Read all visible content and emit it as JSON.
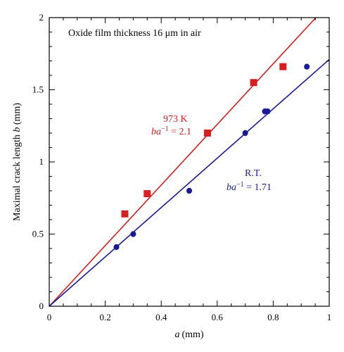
{
  "chart_data": {
    "type": "scatter",
    "annotation": "Oxide film thickness 16 μm in air",
    "xlabel": {
      "var": "a",
      "unit": "(mm)"
    },
    "ylabel": {
      "prefix": "Maximal crack length ",
      "var": "b",
      "unit": " (mm)"
    },
    "xlim": [
      0,
      1
    ],
    "ylim": [
      0,
      2
    ],
    "xticks": [
      "0",
      "0.2",
      "0.4",
      "0.6",
      "0.8",
      "1"
    ],
    "yticks": [
      "0",
      "0.5",
      "1",
      "1.5",
      "2"
    ],
    "grid": false,
    "series": [
      {
        "name": "973 K",
        "color": "#d42020",
        "marker": "square",
        "points": [
          {
            "x": 0.27,
            "y": 0.64
          },
          {
            "x": 0.35,
            "y": 0.78
          },
          {
            "x": 0.565,
            "y": 1.2
          },
          {
            "x": 0.73,
            "y": 1.55
          },
          {
            "x": 0.835,
            "y": 1.66
          }
        ],
        "fit": {
          "slope": 2.1,
          "label_lhs": "ba",
          "label_exp": "−1",
          "label_rhs": " = 2.1"
        }
      },
      {
        "name": "R.T.",
        "color": "#1a1a99",
        "marker": "circle",
        "points": [
          {
            "x": 0.24,
            "y": 0.41
          },
          {
            "x": 0.3,
            "y": 0.5
          },
          {
            "x": 0.5,
            "y": 0.8
          },
          {
            "x": 0.7,
            "y": 1.2
          },
          {
            "x": 0.77,
            "y": 1.35
          },
          {
            "x": 0.78,
            "y": 1.35
          },
          {
            "x": 0.92,
            "y": 1.66
          }
        ],
        "fit": {
          "slope": 1.71,
          "label_lhs": "ba",
          "label_exp": "−1",
          "label_rhs": " = 1.71"
        }
      }
    ]
  }
}
